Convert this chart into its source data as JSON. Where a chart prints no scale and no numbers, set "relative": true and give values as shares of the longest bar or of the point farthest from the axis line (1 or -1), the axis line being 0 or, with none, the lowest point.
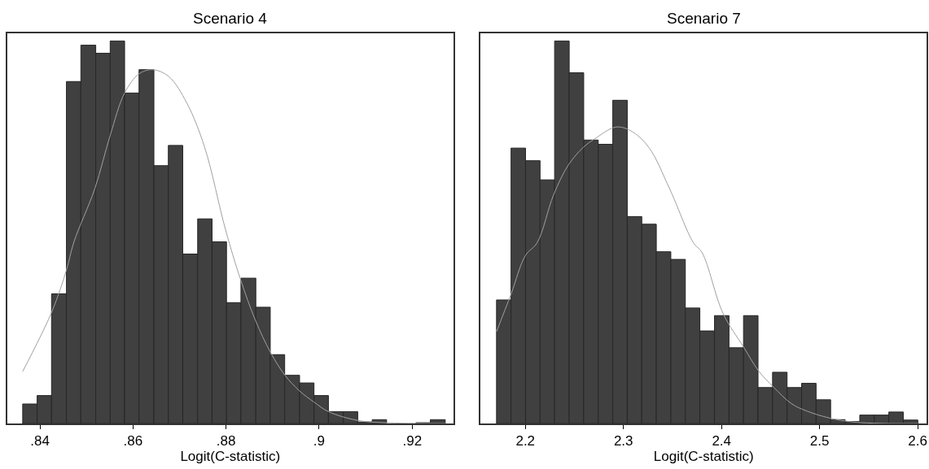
{
  "chart_data": [
    {
      "type": "histogram",
      "title": "Scenario 4",
      "xlabel": "Logit(C-statistic)",
      "relative": true,
      "tick_labels": "x",
      "grid": false,
      "bins": [
        0.8363,
        0.8394,
        0.8425,
        0.8457,
        0.8488,
        0.852,
        0.8551,
        0.8582,
        0.8613,
        0.8645,
        0.8676,
        0.8707,
        0.8739,
        0.877,
        0.8801,
        0.8832,
        0.8864,
        0.8895,
        0.8926,
        0.8958,
        0.8989,
        0.902,
        0.9052,
        0.9083,
        0.9114,
        0.9145,
        0.9208,
        0.9239,
        0.9271
      ],
      "xlim": [
        0.833,
        0.9288
      ],
      "xticks": [
        {
          "value": 0.84,
          "label": ".84"
        },
        {
          "value": 0.86,
          "label": ".86"
        },
        {
          "value": 0.88,
          "label": ".88"
        },
        {
          "value": 0.9,
          "label": ".9"
        },
        {
          "value": 0.92,
          "label": ".92"
        }
      ],
      "series": [
        {
          "color": "#404040",
          "values": [
            0.051,
            0.073,
            0.339,
            0.894,
            0.989,
            0.968,
            1,
            0.864,
            0.925,
            0.674,
            0.727,
            0.443,
            0.535,
            0.475,
            0.316,
            0.38,
            0.304,
            0.18,
            0.126,
            0.106,
            0.073,
            0.031,
            0.031,
            0.004,
            0.01,
            0,
            0.002,
            0.01
          ]
        },
        {
          "type": "line",
          "color": "#a0a0a0",
          "x": [
            0.8363,
            0.8426,
            0.8457,
            0.8473,
            0.8518,
            0.8551,
            0.8582,
            0.8613,
            0.8642,
            0.8677,
            0.8716,
            0.8754,
            0.8799,
            0.8831,
            0.8863,
            0.8896,
            0.8926,
            0.8958,
            0.8989,
            0.902,
            0.9083,
            0.9143,
            0.9271
          ],
          "values": [
            0.136,
            0.293,
            0.401,
            0.474,
            0.614,
            0.753,
            0.864,
            0.914,
            0.925,
            0.907,
            0.837,
            0.722,
            0.506,
            0.377,
            0.27,
            0.185,
            0.127,
            0.085,
            0.056,
            0.031,
            0.008,
            0.002,
            0
          ]
        }
      ]
    },
    {
      "type": "histogram",
      "title": "Scenario 7",
      "xlabel": "Logit(C-statistic)",
      "relative": true,
      "tick_labels": "x",
      "grid": false,
      "bins": [
        2.1706,
        2.1854,
        2.2002,
        2.215,
        2.2298,
        2.2447,
        2.2595,
        2.2743,
        2.2891,
        2.3039,
        2.3187,
        2.3335,
        2.3483,
        2.3631,
        2.3779,
        2.3928,
        2.4076,
        2.4224,
        2.4372,
        2.452,
        2.4668,
        2.4816,
        2.4964,
        2.5112,
        2.526,
        2.5409,
        2.5557,
        2.5705,
        2.5853,
        2.6001
      ],
      "xlim": [
        2.1545,
        2.609
      ],
      "xticks": [
        2.2,
        2.3,
        2.4,
        2.5,
        2.6
      ],
      "series": [
        {
          "color": "#404040",
          "values": [
            0.323,
            0.72,
            0.687,
            0.637,
            1,
            0.917,
            0.741,
            0.73,
            0.845,
            0.541,
            0.521,
            0.449,
            0.429,
            0.302,
            0.242,
            0.282,
            0.198,
            0.282,
            0.094,
            0.134,
            0.094,
            0.105,
            0.062,
            0.01,
            0.005,
            0.022,
            0.022,
            0.03,
            0.009
          ]
        },
        {
          "type": "line",
          "color": "#a0a0a0",
          "x": [
            2.1706,
            2.1855,
            2.2,
            2.2121,
            2.2288,
            2.2439,
            2.2591,
            2.2712,
            2.2924,
            2.3076,
            2.3258,
            2.347,
            2.3712,
            2.3803,
            2.4015,
            2.4227,
            2.4379,
            2.453,
            2.4712,
            2.4864,
            2.5106,
            2.5379,
            2.6
          ],
          "values": [
            0.24,
            0.339,
            0.439,
            0.473,
            0.598,
            0.676,
            0.722,
            0.745,
            0.775,
            0.765,
            0.722,
            0.614,
            0.473,
            0.446,
            0.288,
            0.199,
            0.137,
            0.095,
            0.052,
            0.033,
            0.014,
            0.003,
            0
          ]
        }
      ]
    }
  ]
}
